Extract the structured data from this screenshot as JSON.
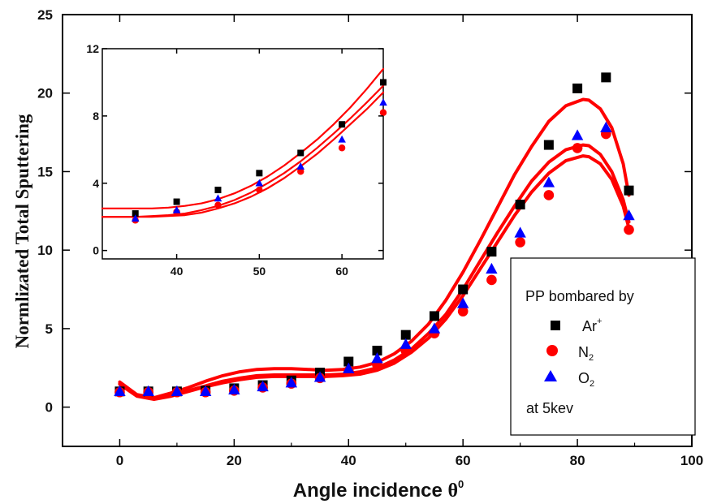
{
  "chart_data": [
    {
      "type": "scatter",
      "title": "",
      "xlabel": "Angle incidence",
      "xlabel_symbol": "θ",
      "xlabel_superscript": "0",
      "ylabel": "Normlizated Total Sputtering",
      "xlim": [
        -10,
        100
      ],
      "ylim": [
        -2.5,
        25
      ],
      "xticks": [
        0,
        20,
        40,
        60,
        80,
        100
      ],
      "yticks": [
        0,
        5,
        10,
        15,
        20,
        25
      ],
      "x": [
        0,
        5,
        10,
        15,
        20,
        25,
        30,
        35,
        40,
        45,
        50,
        55,
        60,
        65,
        70,
        75,
        80,
        85,
        89
      ],
      "series": [
        {
          "name": "Ar",
          "name_superscript": "+",
          "marker": "square",
          "color": "#000000",
          "values": [
            1.0,
            1.0,
            1.0,
            1.05,
            1.2,
            1.4,
            1.7,
            2.2,
            2.9,
            3.6,
            4.6,
            5.8,
            7.5,
            9.9,
            12.9,
            16.7,
            20.3,
            21.0,
            13.8
          ]
        },
        {
          "name": "N",
          "name_subscript": "2",
          "marker": "circle",
          "color": "#ff0000",
          "values": [
            0.95,
            0.95,
            0.95,
            0.95,
            1.05,
            1.25,
            1.5,
            1.85,
            2.3,
            2.7,
            3.6,
            4.7,
            6.1,
            8.1,
            10.5,
            13.5,
            16.5,
            17.4,
            11.3
          ]
        },
        {
          "name": "O",
          "name_subscript": "2",
          "marker": "triangle",
          "color": "#0000ff",
          "values": [
            1.0,
            1.0,
            1.0,
            1.0,
            1.1,
            1.3,
            1.55,
            1.9,
            2.45,
            3.1,
            4.0,
            5.0,
            6.6,
            8.8,
            11.1,
            14.3,
            17.3,
            17.8,
            12.2
          ]
        }
      ],
      "fit_curves": {
        "color": "#ff0000",
        "x": [
          0,
          3,
          6,
          9,
          12,
          15,
          18,
          21,
          24,
          27,
          30,
          33,
          36,
          39,
          42,
          45,
          48,
          51,
          54,
          57,
          60,
          63,
          66,
          69,
          72,
          75,
          78,
          81,
          82,
          84,
          86,
          88,
          89
        ],
        "curves": [
          [
            1.6,
            0.8,
            0.6,
            0.9,
            1.25,
            1.65,
            2.0,
            2.25,
            2.4,
            2.45,
            2.45,
            2.4,
            2.35,
            2.4,
            2.55,
            2.85,
            3.4,
            4.2,
            5.3,
            6.8,
            8.6,
            10.6,
            12.7,
            14.8,
            16.6,
            18.2,
            19.2,
            19.6,
            19.55,
            19.0,
            17.8,
            15.5,
            13.5
          ],
          [
            1.5,
            0.75,
            0.55,
            0.75,
            1.05,
            1.35,
            1.65,
            1.85,
            2.0,
            2.05,
            2.05,
            2.05,
            2.05,
            2.1,
            2.25,
            2.5,
            3.0,
            3.7,
            4.7,
            5.9,
            7.5,
            9.3,
            11.1,
            12.8,
            14.4,
            15.6,
            16.4,
            16.7,
            16.65,
            16.1,
            15.0,
            13.2,
            11.8
          ],
          [
            1.45,
            0.7,
            0.5,
            0.7,
            1.0,
            1.3,
            1.55,
            1.75,
            1.9,
            1.95,
            1.95,
            1.95,
            1.95,
            2.0,
            2.1,
            2.35,
            2.8,
            3.5,
            4.4,
            5.6,
            7.1,
            8.8,
            10.5,
            12.2,
            13.7,
            14.9,
            15.7,
            16.0,
            15.95,
            15.5,
            14.5,
            12.8,
            11.4
          ]
        ]
      },
      "legend": {
        "title": "PP bombared by",
        "footer": "at 5kev",
        "placement": "center-right"
      }
    },
    {
      "type": "scatter",
      "title": "",
      "placement": "inset-top-left",
      "xlim": [
        31,
        65
      ],
      "ylim": [
        -0.5,
        12
      ],
      "xticks": [
        40,
        50,
        60
      ],
      "yticks": [
        0,
        4,
        8,
        12
      ],
      "x": [
        35,
        40,
        45,
        50,
        55,
        60,
        65
      ],
      "series": [
        {
          "marker": "square",
          "color": "#000000",
          "values": [
            2.2,
            2.9,
            3.6,
            4.6,
            5.8,
            7.5,
            10.0
          ]
        },
        {
          "marker": "circle",
          "color": "#ff0000",
          "values": [
            1.8,
            2.3,
            2.7,
            3.6,
            4.7,
            6.1,
            8.2
          ]
        },
        {
          "marker": "triangle",
          "color": "#0000ff",
          "values": [
            1.9,
            2.4,
            3.1,
            4.0,
            5.0,
            6.6,
            8.8
          ]
        }
      ],
      "fit_curves": {
        "color": "#ff0000",
        "x": [
          31,
          33,
          35,
          37,
          39,
          41,
          43,
          45,
          47,
          49,
          51,
          53,
          55,
          57,
          59,
          61,
          63,
          65
        ],
        "curves": [
          [
            2.5,
            2.5,
            2.5,
            2.5,
            2.55,
            2.65,
            2.8,
            3.05,
            3.4,
            3.85,
            4.4,
            5.05,
            5.8,
            6.6,
            7.5,
            8.5,
            9.6,
            10.8
          ],
          [
            2.0,
            2.0,
            2.0,
            2.05,
            2.1,
            2.2,
            2.4,
            2.65,
            3.0,
            3.45,
            4.0,
            4.6,
            5.3,
            6.1,
            6.95,
            7.85,
            8.8,
            9.8
          ],
          [
            2.0,
            2.0,
            2.0,
            2.0,
            2.05,
            2.1,
            2.25,
            2.5,
            2.8,
            3.2,
            3.7,
            4.3,
            5.0,
            5.75,
            6.6,
            7.5,
            8.4,
            9.4
          ]
        ]
      }
    }
  ]
}
